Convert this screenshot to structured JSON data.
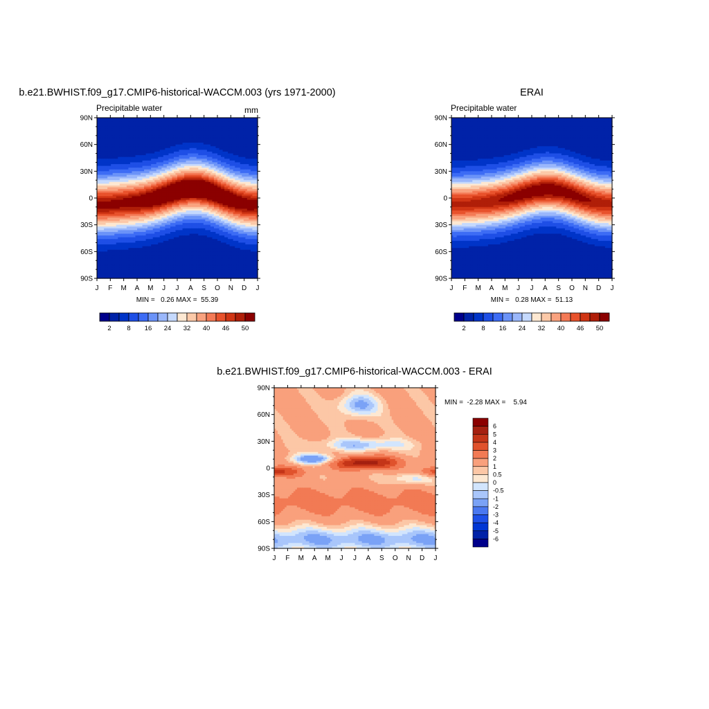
{
  "panels": {
    "model": {
      "title": "b.e21.BWHIST.f09_g17.CMIP6-historical-WACCM.003 (yrs 1971-2000)",
      "left_label": "Precipitable water",
      "right_label": "mm",
      "stats": "MIN =   0.26 MAX =  55.39"
    },
    "obs": {
      "title": "ERAI",
      "left_label": "Precipitable water",
      "stats": "MIN =   0.28 MAX =  51.13"
    },
    "diff": {
      "title": "b.e21.BWHIST.f09_g17.CMIP6-historical-WACCM.003 - ERAI",
      "stats": "MIN =  -2.28 MAX =    5.94"
    }
  },
  "colors": {
    "main": [
      "#00008b",
      "#0022a8",
      "#0034c8",
      "#1e4fe6",
      "#3d6cf5",
      "#6b93f8",
      "#9ab7fb",
      "#c5d9fd",
      "#fde8d2",
      "#fcc9a8",
      "#f9a27f",
      "#f47a56",
      "#e8522c",
      "#d03514",
      "#b01e08",
      "#8b0000"
    ],
    "diff": [
      "#00008b",
      "#0022a8",
      "#0036d4",
      "#1e50e8",
      "#4a78f0",
      "#7aa2f6",
      "#a9c6fb",
      "#d2e5fd",
      "#fde8d2",
      "#fcc7a6",
      "#f9a07c",
      "#f27a54",
      "#e0522c",
      "#c43518",
      "#a52010",
      "#8b0000"
    ]
  },
  "chart_data": [
    {
      "type": "heatmap",
      "x": [
        "J",
        "F",
        "M",
        "A",
        "M",
        "J",
        "J",
        "A",
        "S",
        "O",
        "N",
        "D",
        "J"
      ],
      "y": [
        "90S",
        "60S",
        "30S",
        "0",
        "30N",
        "60N",
        "90N"
      ],
      "colorbar": {
        "labels": [
          "2",
          "8",
          "16",
          "24",
          "32",
          "40",
          "46",
          "50"
        ]
      }
    },
    {
      "type": "heatmap",
      "x": [
        "J",
        "F",
        "M",
        "A",
        "M",
        "J",
        "J",
        "A",
        "S",
        "O",
        "N",
        "D",
        "J"
      ],
      "y": [
        "90S",
        "60S",
        "30S",
        "0",
        "30N",
        "60N",
        "90N"
      ],
      "colorbar": {
        "labels": [
          "2",
          "8",
          "16",
          "24",
          "32",
          "40",
          "46",
          "50"
        ]
      }
    },
    {
      "type": "heatmap",
      "x": [
        "J",
        "F",
        "M",
        "A",
        "M",
        "J",
        "J",
        "A",
        "S",
        "O",
        "N",
        "D",
        "J"
      ],
      "y": [
        "90S",
        "60S",
        "30S",
        "0",
        "30N",
        "60N",
        "90N"
      ],
      "colorbar": {
        "labels": [
          "6",
          "5",
          "4",
          "3",
          "2",
          "1",
          "0.5",
          "0",
          "-0.5",
          "-1",
          "-2",
          "-3",
          "-4",
          "-5",
          "-6"
        ]
      }
    }
  ]
}
